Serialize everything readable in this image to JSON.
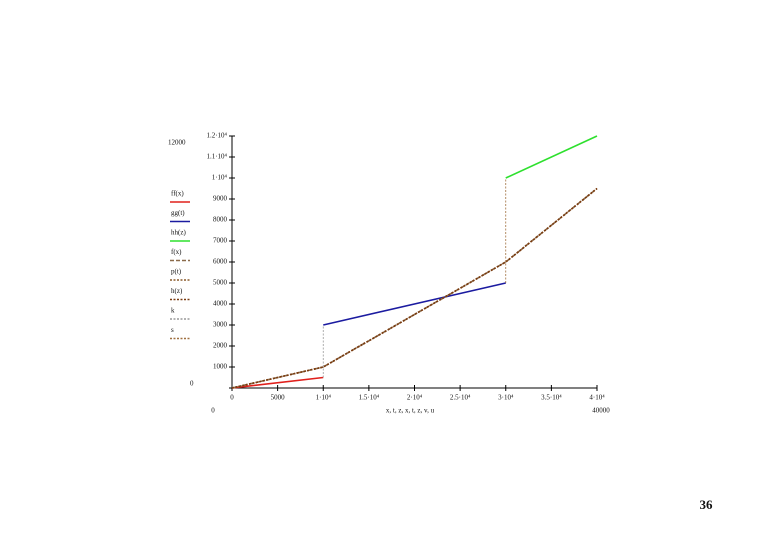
{
  "chart_data": {
    "type": "line",
    "x_label": "x, t, z, x, t, z, v, u",
    "xlim": [
      0,
      40000
    ],
    "ylim": [
      0,
      12000
    ],
    "xlim_labels": [
      "0",
      "40000"
    ],
    "ylim_labels": [
      "0",
      "12000"
    ],
    "xticks": [
      0,
      5000,
      {
        "value": 10000,
        "label": "1·10⁴"
      },
      {
        "value": 15000,
        "label": "1.5·10⁴"
      },
      {
        "value": 20000,
        "label": "2·10⁴"
      },
      {
        "value": 25000,
        "label": "2.5·10⁴"
      },
      {
        "value": 30000,
        "label": "3·10⁴"
      },
      {
        "value": 35000,
        "label": "3.5·10⁴"
      },
      {
        "value": 40000,
        "label": "4·10⁴"
      }
    ],
    "yticks": [
      0,
      1000,
      2000,
      3000,
      4000,
      5000,
      6000,
      7000,
      8000,
      9000,
      {
        "value": 10000,
        "label": "1·10⁴"
      },
      {
        "value": 11000,
        "label": "1.1·10⁴"
      },
      {
        "value": 12000,
        "label": "1.2·10⁴"
      }
    ],
    "series": [
      {
        "name": "ff(x)",
        "color": "#e0201c",
        "dash": "solid",
        "x": [
          0,
          10000
        ],
        "values": [
          0,
          500
        ]
      },
      {
        "name": "gg(t)",
        "color": "#1b1ba0",
        "dash": "solid",
        "x": [
          10000,
          30000
        ],
        "values": [
          3000,
          5000
        ]
      },
      {
        "name": "hh(z)",
        "color": "#2ee02e",
        "dash": "solid",
        "x": [
          30000,
          40000
        ],
        "values": [
          10000,
          12000
        ]
      },
      {
        "name": "f(x)",
        "color": "#8a6a4a",
        "dash": "dashed",
        "x": [
          0,
          10000,
          30000,
          40000
        ],
        "values": [
          0,
          1000,
          6000,
          9500
        ]
      },
      {
        "name": "p(t)",
        "color": "#8a5a2a",
        "dash": "dotted",
        "x": [
          0,
          10000,
          30000,
          40000
        ],
        "values": [
          0,
          1000,
          6000,
          9500
        ]
      },
      {
        "name": "h(z)",
        "color": "#7a3b10",
        "dash": "dotted",
        "x": [
          0,
          10000,
          30000,
          40000
        ],
        "values": [
          0,
          1000,
          6000,
          9500
        ]
      },
      {
        "name": "k",
        "color": "#999999",
        "dash": "dotted",
        "x": [
          10000,
          10000
        ],
        "values": [
          500,
          3000
        ]
      },
      {
        "name": "s",
        "color": "#a07040",
        "dash": "dotted",
        "x": [
          30000,
          30000
        ],
        "values": [
          5000,
          10000
        ]
      }
    ]
  },
  "page_number": "36"
}
